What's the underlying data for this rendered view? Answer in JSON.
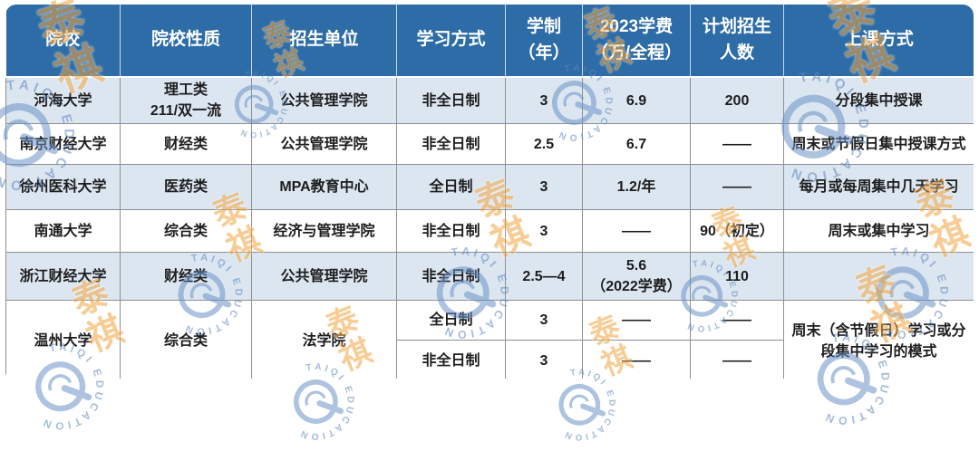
{
  "theme": {
    "header_bg": "#2d6ca6",
    "header_text": "#ffffff",
    "row_alt_bg": "#dbe6f1",
    "row_bg": "#ffffff",
    "grid_border": "#8f8f8f",
    "body_text": "#1d1d1d",
    "watermark_orange": "#f4a640",
    "watermark_blue": "#5d87bd"
  },
  "watermark": {
    "cn": "泰祺",
    "en": "TAIQI EDUCATION"
  },
  "table": {
    "columns": [
      {
        "label": "院校"
      },
      {
        "label": "院校性质"
      },
      {
        "label": "招生单位"
      },
      {
        "label": "学习方式"
      },
      {
        "label": "学制\n（年）"
      },
      {
        "label": "2023学费\n（万/全程）"
      },
      {
        "label": "计划招生\n人数"
      },
      {
        "label": "上课方式"
      }
    ],
    "rows": [
      {
        "school": "河海大学",
        "nature": "理工类\n211/双一流",
        "unit": "公共管理学院",
        "mode": "非全日制",
        "duration": "3",
        "tuition": "6.9",
        "quota": "200",
        "class": "分段集中授课"
      },
      {
        "school": "南京财经大学",
        "nature": "财经类",
        "unit": "公共管理学院",
        "mode": "非全日制",
        "duration": "2.5",
        "tuition": "6.7",
        "quota": "——",
        "class": "周末或节假日集中授课方式"
      },
      {
        "school": "徐州医科大学",
        "nature": "医药类",
        "unit": "MPA教育中心",
        "mode": "全日制",
        "duration": "3",
        "tuition": "1.2/年",
        "quota": "——",
        "class": "每月或每周集中几天学习"
      },
      {
        "school": "南通大学",
        "nature": "综合类",
        "unit": "经济与管理学院",
        "mode": "非全日制",
        "duration": "3",
        "tuition": "——",
        "quota": "90（初定）",
        "class": "周末或集中学习"
      },
      {
        "school": "浙江财经大学",
        "nature": "财经类",
        "unit": "公共管理学院",
        "mode": "非全日制",
        "duration": "2.5—4",
        "tuition": "5.6\n（2022学费）",
        "quota": "110",
        "class": ""
      },
      {
        "school": "温州大学",
        "nature": "综合类",
        "unit": "法学院",
        "mode": "全日制",
        "duration": "3",
        "tuition": "——",
        "quota": "——",
        "class": "周末（含节假日）学习或分段集中学习的模式"
      },
      {
        "mode": "非全日制",
        "duration": "3",
        "tuition": "——",
        "quota": "——"
      }
    ]
  }
}
